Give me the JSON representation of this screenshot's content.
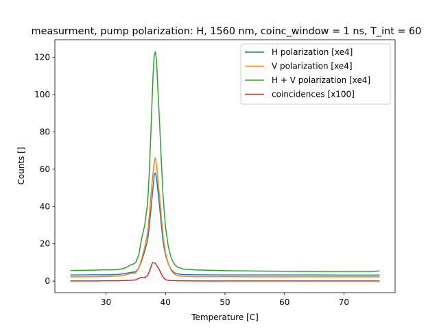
{
  "chart_data": {
    "type": "line",
    "title": "measurment, pump polarization: H, 1560 nm, coinc_window = 1 ns, T_int = 60",
    "xlabel": "Temperature [C]",
    "ylabel": "Counts []",
    "xlim": [
      21.4,
      78.6
    ],
    "ylim": [
      -6.2,
      129.4
    ],
    "xticks": [
      30,
      40,
      50,
      60,
      70
    ],
    "yticks": [
      0,
      20,
      40,
      60,
      80,
      100,
      120
    ],
    "xtick_labels": [
      "30",
      "40",
      "50",
      "60",
      "70"
    ],
    "ytick_labels": [
      "0",
      "20",
      "40",
      "60",
      "80",
      "100",
      "120"
    ],
    "grid": false,
    "legend_position": "top-right",
    "series": [
      {
        "name": "H polarization [xe4]",
        "color": "#1f77b4",
        "x": [
          24,
          26,
          28,
          30,
          32,
          33,
          34,
          35,
          35.5,
          36,
          36.5,
          37,
          37.3,
          37.6,
          37.9,
          38.1,
          38.3,
          38.5,
          38.7,
          39,
          39.3,
          39.6,
          40,
          40.5,
          41,
          41.5,
          42,
          43,
          45,
          50,
          55,
          60,
          65,
          70,
          75,
          76
        ],
        "y": [
          3.3,
          3.3,
          3.4,
          3.4,
          3.6,
          4.0,
          4.6,
          5.0,
          7.0,
          11,
          16,
          22,
          30,
          40,
          50,
          57,
          58,
          55,
          49,
          40,
          30,
          21,
          14,
          9,
          6,
          4.5,
          3.9,
          3.5,
          3.4,
          3.3,
          3.3,
          3.3,
          3.3,
          3.2,
          3.2,
          3.3
        ]
      },
      {
        "name": "V polarization [xe4]",
        "color": "#ff7f0e",
        "x": [
          24,
          26,
          28,
          30,
          32,
          33,
          34,
          35,
          35.5,
          36,
          36.5,
          37,
          37.3,
          37.6,
          37.9,
          38.1,
          38.3,
          38.5,
          38.7,
          39,
          39.3,
          39.6,
          40,
          40.5,
          41,
          41.5,
          42,
          43,
          45,
          50,
          55,
          60,
          65,
          70,
          75,
          76
        ],
        "y": [
          2.3,
          2.3,
          2.4,
          2.5,
          2.7,
          3.2,
          3.9,
          4.5,
          7.0,
          12,
          18,
          26,
          36,
          48,
          58,
          64,
          66,
          62,
          55,
          45,
          34,
          24,
          15,
          9,
          5.5,
          3.8,
          3.0,
          2.6,
          2.4,
          2.4,
          2.3,
          2.3,
          2.3,
          2.3,
          2.3,
          2.3
        ]
      },
      {
        "name": "H + V polarization [xe4]",
        "color": "#2ca02c",
        "x": [
          24,
          26,
          28,
          30,
          31,
          32,
          33,
          33.5,
          34,
          34.5,
          35,
          35.5,
          36,
          36.5,
          37,
          37.3,
          37.6,
          37.9,
          38.1,
          38.3,
          38.5,
          38.7,
          39,
          39.3,
          39.6,
          40,
          40.5,
          41,
          41.5,
          42,
          43,
          45,
          50,
          55,
          60,
          65,
          70,
          75,
          76
        ],
        "y": [
          5.7,
          5.8,
          5.9,
          6.1,
          6.0,
          6.2,
          6.8,
          7.5,
          8.5,
          9.0,
          10,
          14,
          23,
          30,
          42,
          60,
          85,
          110,
          121,
          123,
          118,
          104,
          85,
          64,
          45,
          29,
          18,
          12,
          9,
          7.5,
          6.5,
          6.0,
          5.6,
          5.4,
          5.3,
          5.2,
          5.2,
          5.2,
          5.5
        ]
      },
      {
        "name": "coincidences [x100]",
        "color": "#d62728",
        "x": [
          24,
          26,
          28,
          30,
          32,
          34,
          35,
          35.5,
          36,
          36.5,
          37,
          37.5,
          37.8,
          38,
          38.3,
          38.6,
          38.9,
          39.2,
          39.5,
          40,
          40.5,
          41,
          42,
          45,
          50,
          55,
          60,
          65,
          70,
          75,
          76
        ],
        "y": [
          0.1,
          0.1,
          0.1,
          0.2,
          0.2,
          0.4,
          0.7,
          1.5,
          2.0,
          1.8,
          3.0,
          7.0,
          10,
          9.8,
          9.5,
          8.0,
          6.5,
          4.5,
          2.5,
          0.8,
          0.4,
          0.3,
          0.2,
          0.1,
          0.1,
          0.1,
          0.1,
          0.1,
          0.1,
          0.1,
          0.1
        ]
      }
    ]
  }
}
